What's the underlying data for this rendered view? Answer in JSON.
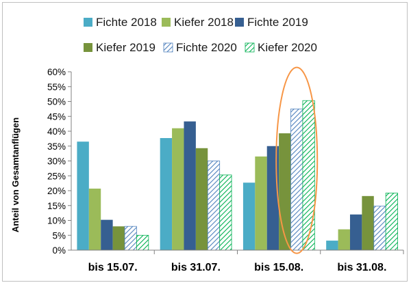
{
  "chart_data": {
    "type": "bar",
    "categories": [
      "bis 15.07.",
      "bis 31.07.",
      "bis 15.08.",
      "bis 31.08."
    ],
    "series": [
      {
        "name": "Fichte 2018",
        "values": [
          36.5,
          37.7,
          22.7,
          3.2
        ],
        "color": "#4bacc6",
        "pattern": "solid"
      },
      {
        "name": "Kiefer 2018",
        "values": [
          20.7,
          41.0,
          31.5,
          7.0
        ],
        "color": "#9bbb59",
        "pattern": "solid"
      },
      {
        "name": "Fichte 2019",
        "values": [
          10.2,
          43.3,
          35.0,
          12.0
        ],
        "color": "#365f91",
        "pattern": "solid"
      },
      {
        "name": "Kiefer 2019",
        "values": [
          8.0,
          34.3,
          39.3,
          18.2
        ],
        "color": "#77933c",
        "pattern": "solid"
      },
      {
        "name": "Fichte 2020",
        "values": [
          8.0,
          30.0,
          47.5,
          14.8
        ],
        "color": "#4f81bd",
        "pattern": "hatch"
      },
      {
        "name": "Kiefer 2020",
        "values": [
          5.0,
          25.3,
          50.3,
          19.2
        ],
        "color": "#00b050",
        "pattern": "hatch"
      }
    ],
    "ylabel": "Anteil von Gesamtanflügen",
    "ylim": [
      0,
      60
    ],
    "yticks": [
      "0%",
      "5%",
      "10%",
      "15%",
      "20%",
      "25%",
      "30%",
      "35%",
      "40%",
      "45%",
      "50%",
      "55%",
      "60%"
    ],
    "grid": false,
    "legend_position": "top",
    "annotation": {
      "shape": "ellipse",
      "color": "#f79646",
      "highlights": "bis 15.08. / 2020"
    }
  }
}
